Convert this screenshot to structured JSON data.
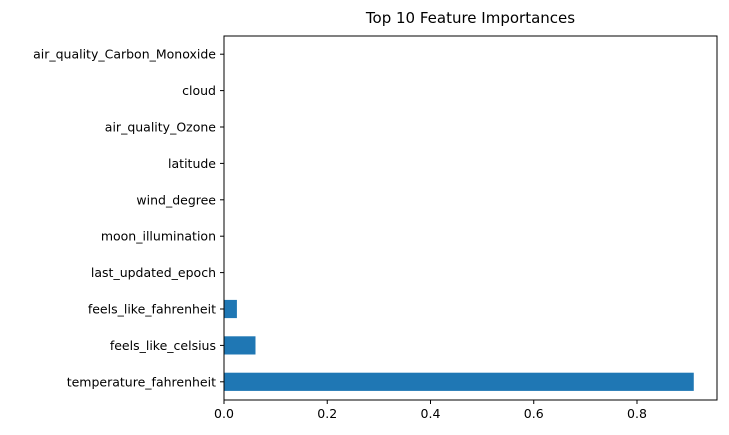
{
  "chart_data": {
    "type": "bar",
    "orientation": "horizontal",
    "title": "Top 10 Feature Importances",
    "xlabel": "",
    "ylabel": "",
    "xlim": [
      0,
      0.955
    ],
    "xticks": [
      {
        "value": 0.0,
        "label": "0.0"
      },
      {
        "value": 0.2,
        "label": "0.2"
      },
      {
        "value": 0.4,
        "label": "0.4"
      },
      {
        "value": 0.6,
        "label": "0.6"
      },
      {
        "value": 0.8,
        "label": "0.8"
      }
    ],
    "categories": [
      "temperature_fahrenheit",
      "feels_like_celsius",
      "feels_like_fahrenheit",
      "last_updated_epoch",
      "moon_illumination",
      "wind_degree",
      "latitude",
      "air_quality_Ozone",
      "cloud",
      "air_quality_Carbon_Monoxide"
    ],
    "values": [
      0.91,
      0.061,
      0.025,
      0.0004,
      0.0003,
      0.0002,
      0.0002,
      0.0002,
      0.0001,
      0.0001
    ],
    "bar_color": "#1f77b4",
    "grid": false,
    "legend": "none"
  }
}
